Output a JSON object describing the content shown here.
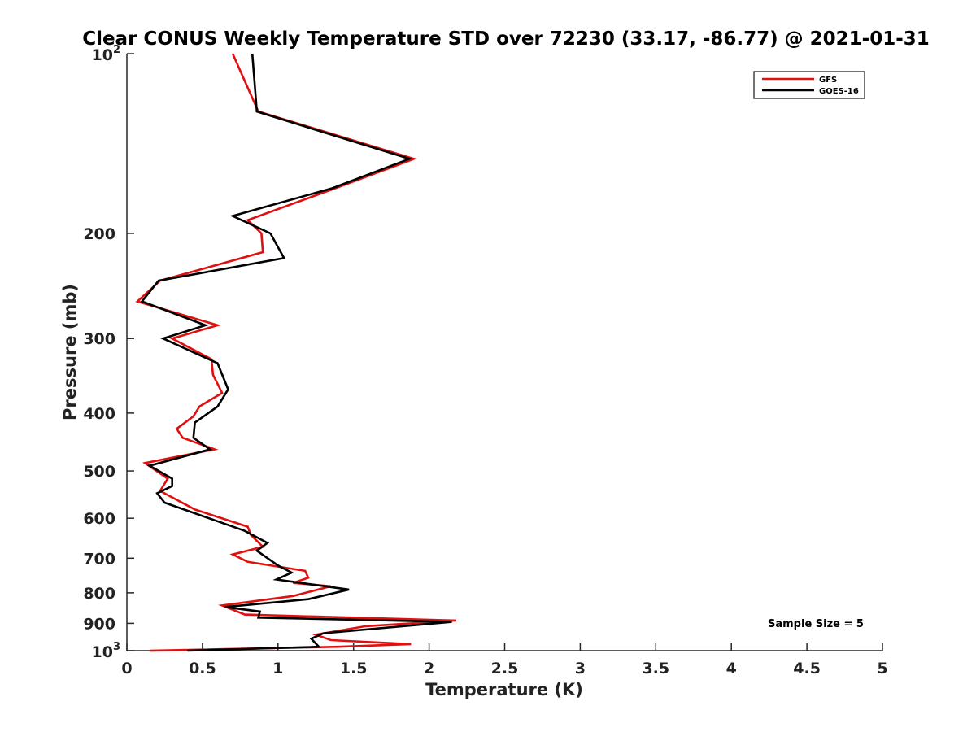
{
  "chart_data": {
    "type": "line",
    "title": "Clear CONUS Weekly Temperature STD over 72230 (33.17, -86.77) @ 2021-01-31",
    "xlabel": "Temperature (K)",
    "ylabel": "Pressure (mb)",
    "xlim": [
      0,
      5
    ],
    "ylim": [
      100,
      1000
    ],
    "yscale": "log",
    "y_reversed": true,
    "x_ticks": [
      {
        "value": 0,
        "label": "0"
      },
      {
        "value": 0.5,
        "label": "0.5"
      },
      {
        "value": 1,
        "label": "1"
      },
      {
        "value": 1.5,
        "label": "1.5"
      },
      {
        "value": 2,
        "label": "2"
      },
      {
        "value": 2.5,
        "label": "2.5"
      },
      {
        "value": 3,
        "label": "3"
      },
      {
        "value": 3.5,
        "label": "3.5"
      },
      {
        "value": 4,
        "label": "4"
      },
      {
        "value": 4.5,
        "label": "4.5"
      },
      {
        "value": 5,
        "label": "5"
      }
    ],
    "y_ticks": [
      {
        "value": 100,
        "label": "10",
        "sup": "2"
      },
      {
        "value": 200,
        "label": "200"
      },
      {
        "value": 300,
        "label": "300"
      },
      {
        "value": 400,
        "label": "400"
      },
      {
        "value": 500,
        "label": "500"
      },
      {
        "value": 600,
        "label": "600"
      },
      {
        "value": 700,
        "label": "700"
      },
      {
        "value": 800,
        "label": "800"
      },
      {
        "value": 900,
        "label": "900"
      },
      {
        "value": 1000,
        "label": "10",
        "sup": "3"
      }
    ],
    "legend_position": "top-right",
    "grid": false,
    "annotation": "Sample Size = 5",
    "series": [
      {
        "name": "GFS",
        "color": "#e01010",
        "points": [
          [
            0.7,
            100
          ],
          [
            0.87,
            125
          ],
          [
            1.9,
            150
          ],
          [
            1.38,
            168
          ],
          [
            0.8,
            190
          ],
          [
            0.89,
            200
          ],
          [
            0.9,
            215
          ],
          [
            0.22,
            240
          ],
          [
            0.07,
            260
          ],
          [
            0.6,
            285
          ],
          [
            0.3,
            300
          ],
          [
            0.56,
            325
          ],
          [
            0.57,
            345
          ],
          [
            0.63,
            370
          ],
          [
            0.48,
            390
          ],
          [
            0.44,
            405
          ],
          [
            0.33,
            425
          ],
          [
            0.37,
            440
          ],
          [
            0.58,
            460
          ],
          [
            0.12,
            485
          ],
          [
            0.27,
            515
          ],
          [
            0.22,
            540
          ],
          [
            0.45,
            580
          ],
          [
            0.8,
            620
          ],
          [
            0.82,
            640
          ],
          [
            0.9,
            670
          ],
          [
            0.7,
            690
          ],
          [
            0.8,
            710
          ],
          [
            1.18,
            735
          ],
          [
            1.2,
            755
          ],
          [
            1.1,
            770
          ],
          [
            1.35,
            780
          ],
          [
            1.1,
            810
          ],
          [
            0.63,
            840
          ],
          [
            0.78,
            870
          ],
          [
            2.18,
            890
          ],
          [
            1.58,
            910
          ],
          [
            1.25,
            940
          ],
          [
            1.35,
            960
          ],
          [
            1.88,
            975
          ],
          [
            1.4,
            985
          ],
          [
            0.15,
            1000
          ]
        ]
      },
      {
        "name": "GOES-16",
        "color": "#000000",
        "points": [
          [
            0.83,
            100
          ],
          [
            0.86,
            125
          ],
          [
            1.87,
            150
          ],
          [
            1.36,
            168
          ],
          [
            0.7,
            187
          ],
          [
            0.95,
            200
          ],
          [
            1.04,
            220
          ],
          [
            0.21,
            240
          ],
          [
            0.1,
            260
          ],
          [
            0.52,
            285
          ],
          [
            0.24,
            300
          ],
          [
            0.6,
            330
          ],
          [
            0.67,
            365
          ],
          [
            0.6,
            390
          ],
          [
            0.45,
            415
          ],
          [
            0.44,
            440
          ],
          [
            0.55,
            460
          ],
          [
            0.15,
            490
          ],
          [
            0.3,
            515
          ],
          [
            0.3,
            530
          ],
          [
            0.2,
            545
          ],
          [
            0.25,
            565
          ],
          [
            0.78,
            630
          ],
          [
            0.93,
            660
          ],
          [
            0.86,
            680
          ],
          [
            1.0,
            720
          ],
          [
            1.09,
            740
          ],
          [
            0.99,
            760
          ],
          [
            1.47,
            790
          ],
          [
            1.2,
            820
          ],
          [
            0.65,
            845
          ],
          [
            0.88,
            860
          ],
          [
            0.87,
            880
          ],
          [
            2.15,
            895
          ],
          [
            1.3,
            935
          ],
          [
            1.22,
            955
          ],
          [
            1.27,
            985
          ],
          [
            0.4,
            1000
          ]
        ]
      }
    ]
  }
}
